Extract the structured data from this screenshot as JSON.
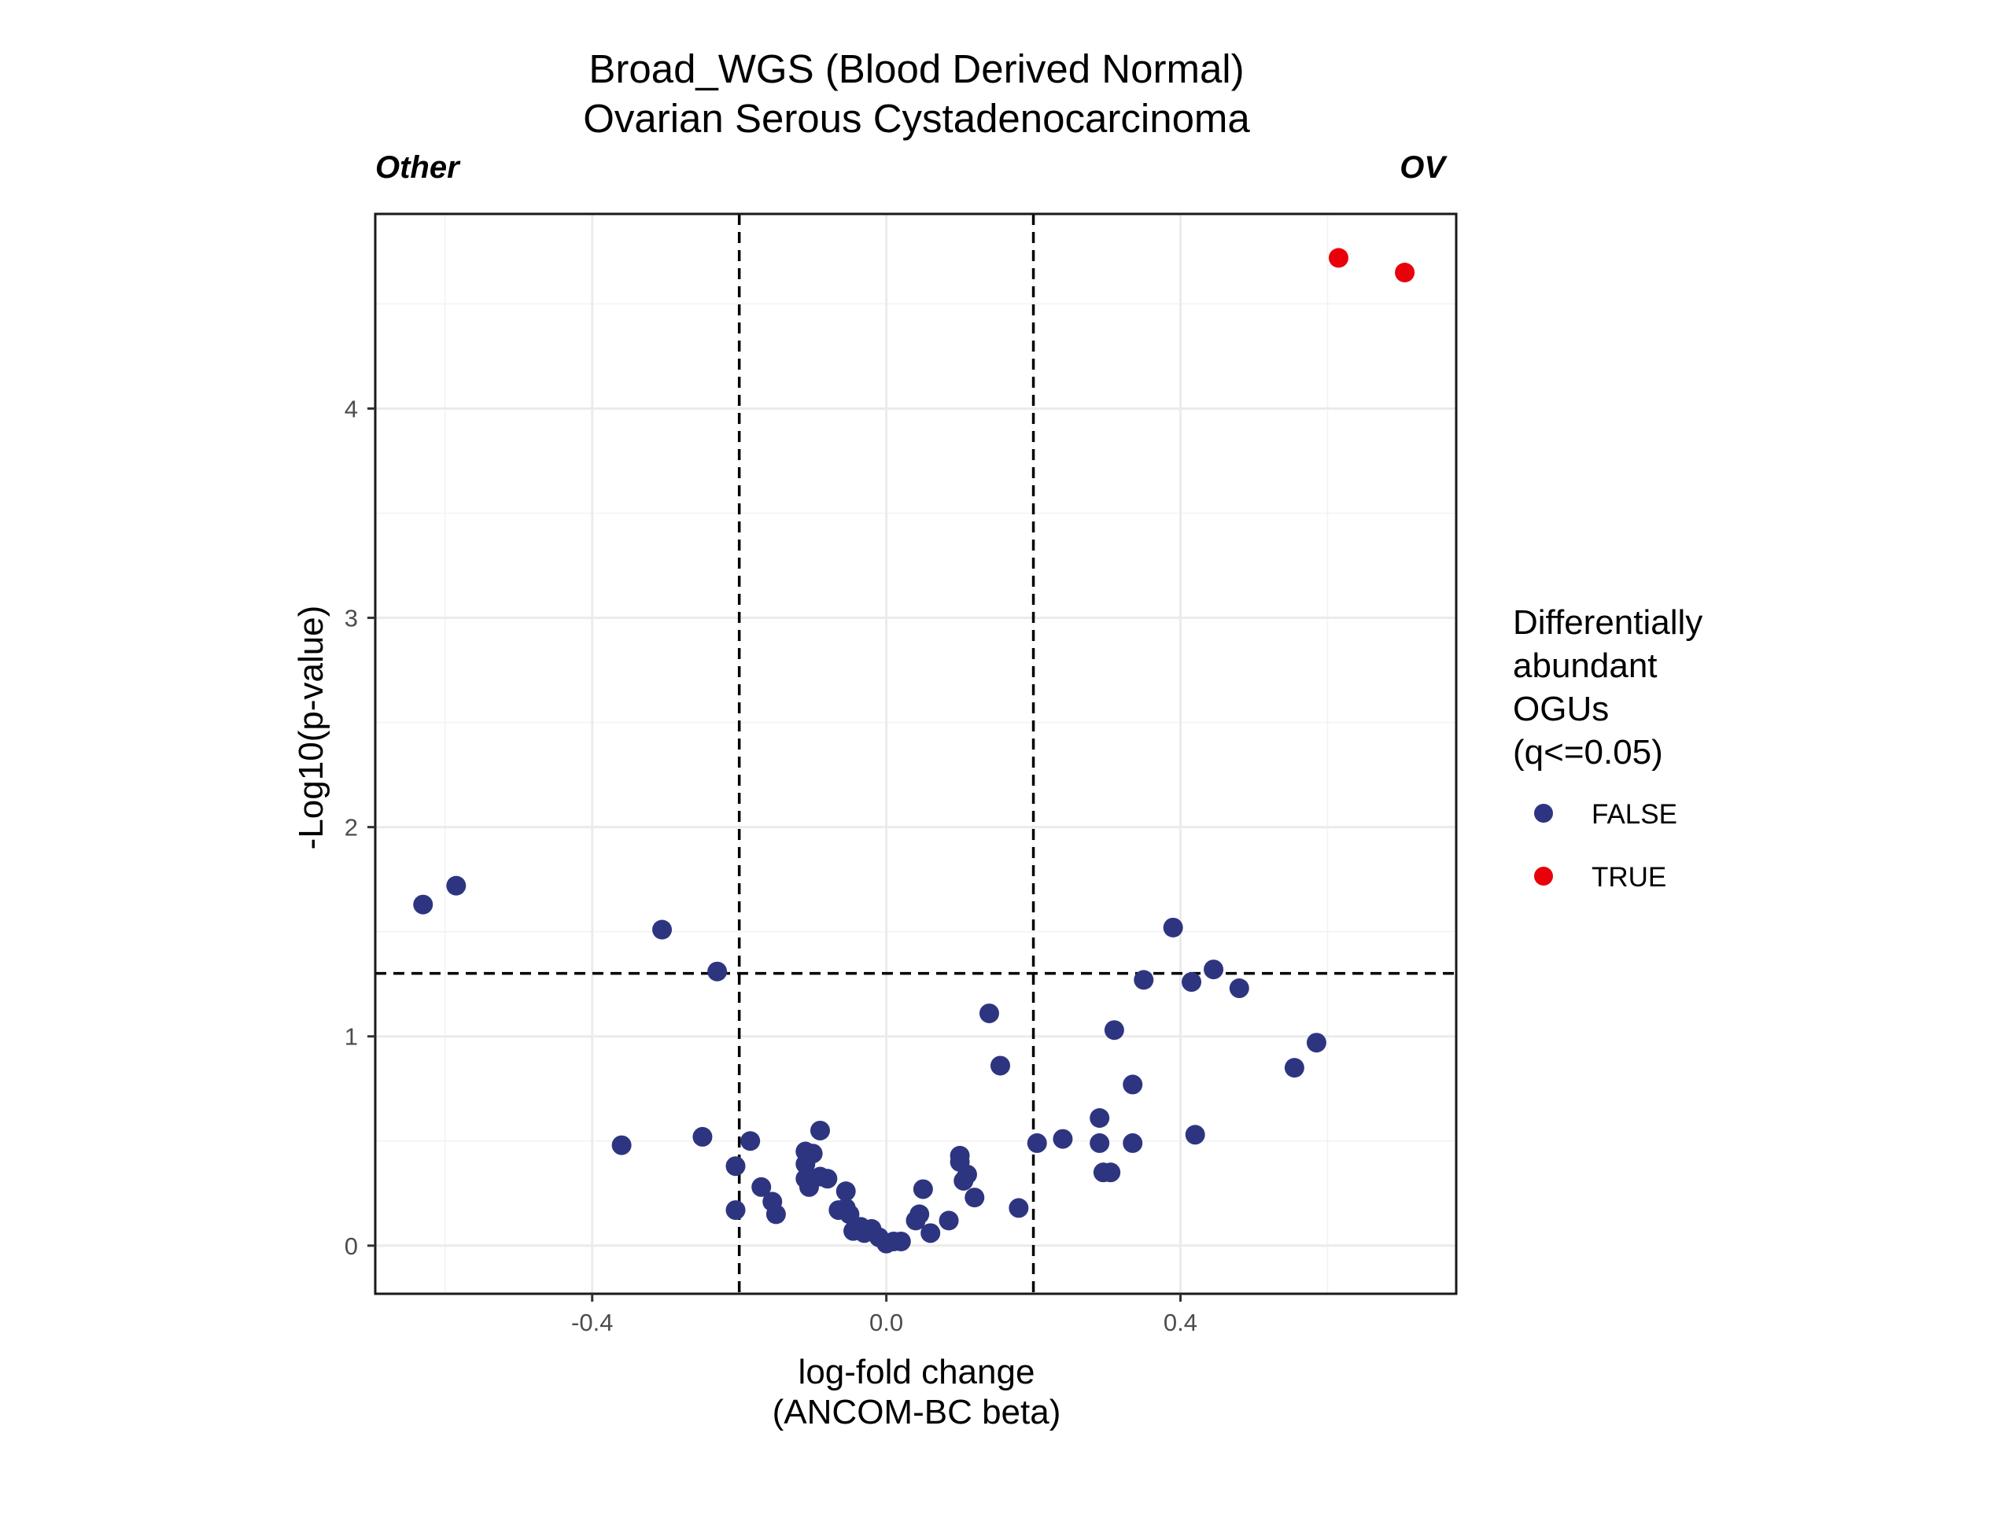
{
  "chart_data": {
    "type": "scatter",
    "title": "Broad_WGS (Blood Derived Normal)",
    "subtitle": "Ovarian Serous Cystadenocarcinoma",
    "xlabel_line1": "log-fold change",
    "xlabel_line2": "(ANCOM-BC beta)",
    "ylabel": "-Log10(p-value)",
    "left_label": "Other",
    "right_label": "OV",
    "xlim": [
      -0.695,
      0.775
    ],
    "ylim": [
      -0.23,
      4.93
    ],
    "x_ticks": [
      -0.4,
      0.0,
      0.4
    ],
    "x_tick_labels": [
      "-0.4",
      "0.0",
      "0.4"
    ],
    "x_minor_ticks": [
      -0.6,
      -0.2,
      0.2,
      0.6
    ],
    "y_ticks": [
      0,
      1,
      2,
      3,
      4
    ],
    "y_tick_labels": [
      "0",
      "1",
      "2",
      "3",
      "4"
    ],
    "y_minor_ticks": [
      0.5,
      1.5,
      2.5,
      3.5,
      4.5
    ],
    "grid": true,
    "vlines": [
      -0.2,
      0.2
    ],
    "hline": 1.301,
    "legend": {
      "title_lines": [
        "Differentially",
        "abundant",
        "OGUs",
        "(q<=0.05)"
      ],
      "position": "right",
      "entries": [
        {
          "label": "FALSE",
          "color": "#2e3580"
        },
        {
          "label": "TRUE",
          "color": "#e8000b"
        }
      ]
    },
    "series": [
      {
        "name": "FALSE",
        "color": "#2e3580",
        "points": [
          [
            -0.63,
            1.63
          ],
          [
            -0.585,
            1.72
          ],
          [
            -0.305,
            1.51
          ],
          [
            -0.23,
            1.31
          ],
          [
            -0.36,
            0.48
          ],
          [
            -0.25,
            0.52
          ],
          [
            -0.205,
            0.38
          ],
          [
            -0.205,
            0.17
          ],
          [
            -0.185,
            0.5
          ],
          [
            -0.17,
            0.28
          ],
          [
            -0.155,
            0.21
          ],
          [
            -0.15,
            0.15
          ],
          [
            -0.11,
            0.45
          ],
          [
            -0.1,
            0.44
          ],
          [
            -0.11,
            0.39
          ],
          [
            -0.11,
            0.32
          ],
          [
            -0.105,
            0.28
          ],
          [
            -0.09,
            0.55
          ],
          [
            -0.09,
            0.33
          ],
          [
            -0.08,
            0.32
          ],
          [
            -0.065,
            0.17
          ],
          [
            -0.055,
            0.26
          ],
          [
            -0.055,
            0.18
          ],
          [
            -0.05,
            0.15
          ],
          [
            -0.045,
            0.07
          ],
          [
            -0.035,
            0.09
          ],
          [
            -0.03,
            0.06
          ],
          [
            -0.02,
            0.08
          ],
          [
            -0.01,
            0.04
          ],
          [
            0.0,
            0.01
          ],
          [
            0.01,
            0.02
          ],
          [
            0.02,
            0.02
          ],
          [
            0.04,
            0.12
          ],
          [
            0.045,
            0.15
          ],
          [
            0.05,
            0.27
          ],
          [
            0.06,
            0.06
          ],
          [
            0.085,
            0.12
          ],
          [
            0.1,
            0.43
          ],
          [
            0.1,
            0.4
          ],
          [
            0.105,
            0.31
          ],
          [
            0.11,
            0.34
          ],
          [
            0.12,
            0.23
          ],
          [
            0.14,
            1.11
          ],
          [
            0.155,
            0.86
          ],
          [
            0.18,
            0.18
          ],
          [
            0.205,
            0.49
          ],
          [
            0.24,
            0.51
          ],
          [
            0.29,
            0.61
          ],
          [
            0.29,
            0.49
          ],
          [
            0.295,
            0.35
          ],
          [
            0.305,
            0.35
          ],
          [
            0.31,
            1.03
          ],
          [
            0.335,
            0.77
          ],
          [
            0.335,
            0.49
          ],
          [
            0.35,
            1.27
          ],
          [
            0.39,
            1.52
          ],
          [
            0.415,
            1.26
          ],
          [
            0.42,
            0.53
          ],
          [
            0.445,
            1.32
          ],
          [
            0.48,
            1.23
          ],
          [
            0.555,
            0.85
          ],
          [
            0.585,
            0.97
          ]
        ]
      },
      {
        "name": "TRUE",
        "color": "#e8000b",
        "points": [
          [
            0.615,
            4.72
          ],
          [
            0.705,
            4.65
          ]
        ]
      }
    ]
  }
}
